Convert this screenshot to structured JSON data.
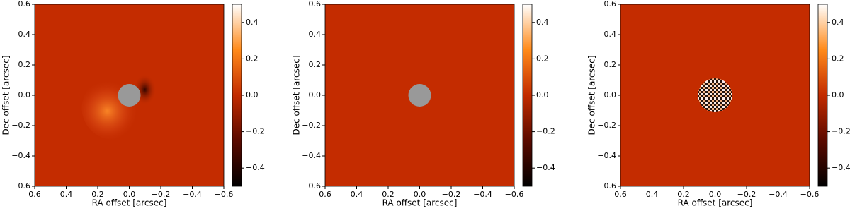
{
  "chart_data": [
    {
      "type": "heatmap",
      "xlabel": "RA offset [arcsec]",
      "ylabel": "Dec offset [arcsec]",
      "xlim": [
        0.6,
        -0.6
      ],
      "ylim": [
        -0.6,
        0.6
      ],
      "xticks": [
        0.6,
        0.4,
        0.2,
        {
          "value": 0,
          "label": "0.0"
        },
        {
          "value": -0.2,
          "label": "−0.2"
        },
        {
          "value": -0.4,
          "label": "−0.4"
        },
        {
          "value": -0.6,
          "label": "−0.6"
        }
      ],
      "yticks": [
        {
          "value": -0.6,
          "label": "−0.6"
        },
        {
          "value": -0.4,
          "label": "−0.4"
        },
        {
          "value": -0.2,
          "label": "−0.2"
        },
        {
          "value": 0,
          "label": "0.0"
        },
        0.2,
        0.4,
        0.6
      ],
      "clim": [
        -0.5,
        0.5
      ],
      "cticks": [
        {
          "value": -0.4,
          "label": "−0.4"
        },
        {
          "value": -0.2,
          "label": "−0.2"
        },
        {
          "value": 0,
          "label": "0.0"
        },
        0.2,
        0.4
      ]
    },
    {
      "type": "heatmap",
      "xlabel": "RA offset [arcsec]",
      "ylabel": "Dec offset [arcsec]",
      "xlim": [
        0.6,
        -0.6
      ],
      "ylim": [
        -0.6,
        0.6
      ],
      "xticks": [
        0.6,
        0.4,
        0.2,
        {
          "value": 0,
          "label": "0.0"
        },
        {
          "value": -0.2,
          "label": "−0.2"
        },
        {
          "value": -0.4,
          "label": "−0.4"
        },
        {
          "value": -0.6,
          "label": "−0.6"
        }
      ],
      "yticks": [
        {
          "value": -0.6,
          "label": "−0.6"
        },
        {
          "value": -0.4,
          "label": "−0.4"
        },
        {
          "value": -0.2,
          "label": "−0.2"
        },
        {
          "value": 0,
          "label": "0.0"
        },
        0.2,
        0.4,
        0.6
      ],
      "clim": [
        -0.5,
        0.5
      ],
      "cticks": [
        {
          "value": -0.4,
          "label": "−0.4"
        },
        {
          "value": -0.2,
          "label": "−0.2"
        },
        {
          "value": 0,
          "label": "0.0"
        },
        0.2,
        0.4
      ]
    },
    {
      "type": "heatmap",
      "xlabel": "RA offset [arcsec]",
      "ylabel": "Dec offset [arcsec]",
      "xlim": [
        0.6,
        -0.6
      ],
      "ylim": [
        -0.6,
        0.6
      ],
      "xticks": [
        0.6,
        0.4,
        0.2,
        {
          "value": 0,
          "label": "0.0"
        },
        {
          "value": -0.2,
          "label": "−0.2"
        },
        {
          "value": -0.4,
          "label": "−0.4"
        },
        {
          "value": -0.6,
          "label": "−0.6"
        }
      ],
      "yticks": [
        {
          "value": -0.6,
          "label": "−0.6"
        },
        {
          "value": -0.4,
          "label": "−0.4"
        },
        {
          "value": -0.2,
          "label": "−0.2"
        },
        {
          "value": 0,
          "label": "0.0"
        },
        0.2,
        0.4,
        0.6
      ],
      "clim": [
        -0.5,
        0.5
      ],
      "cticks": [
        {
          "value": -0.4,
          "label": "−0.4"
        },
        {
          "value": -0.2,
          "label": "−0.2"
        },
        {
          "value": 0,
          "label": "0.0"
        },
        0.2,
        0.4
      ]
    }
  ]
}
